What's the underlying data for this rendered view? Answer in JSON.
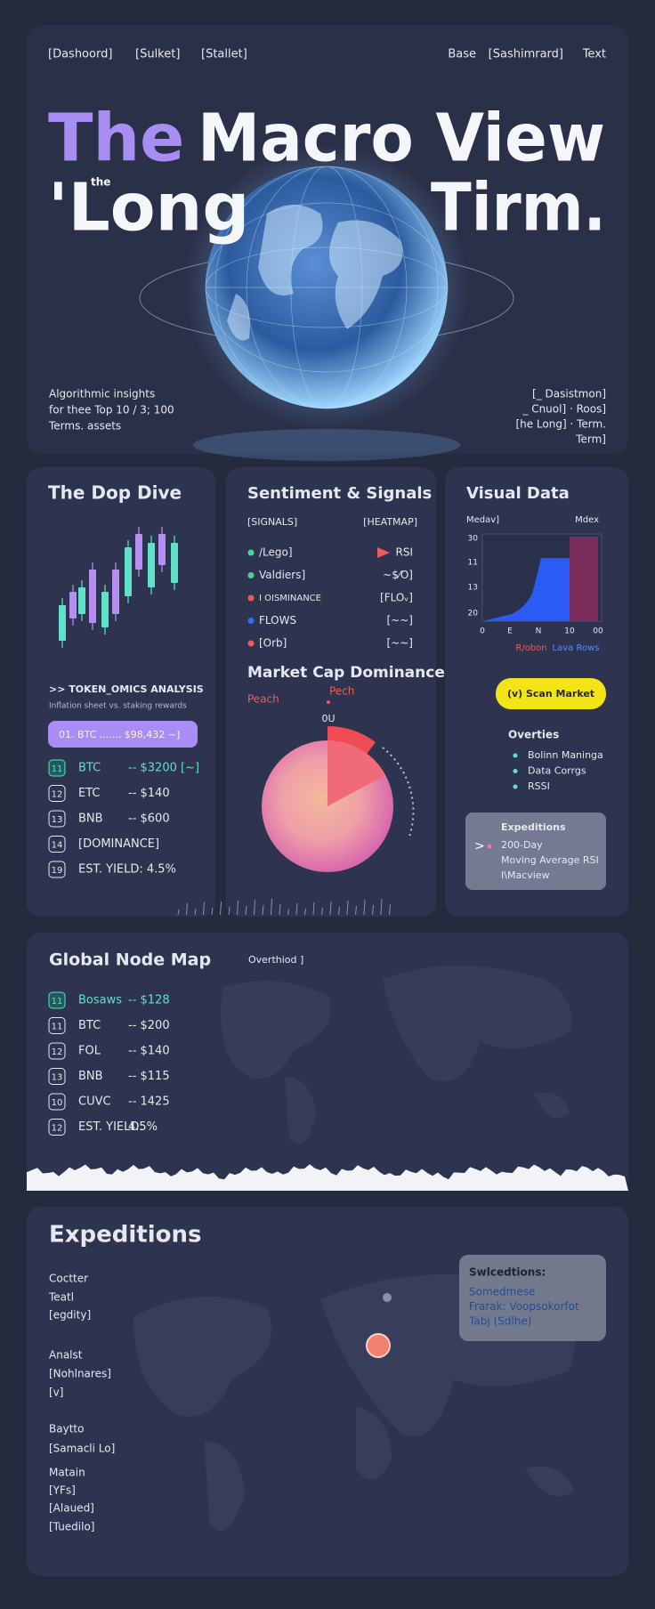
{
  "nav": {
    "left": [
      "[Dashoord]",
      "[Sulket]",
      "[Stallet]"
    ],
    "right": [
      "Base",
      "[Sashimrard]",
      "Text"
    ]
  },
  "hero": {
    "title": [
      "The",
      "Macro View"
    ],
    "line2": [
      "'Long",
      "the",
      "Tirm."
    ],
    "left_text": [
      "Algorithmic insights",
      "for thee Top 10 / 3; 100",
      "Terms. assets"
    ],
    "right_text": [
      "[_ Dasistmon]",
      "_ Cnuol]  · Roos]",
      "[he Long]  · Term.",
      "Term]"
    ]
  },
  "deep_dive": {
    "title": "The  Dop  Dive",
    "section": ">> TOKEN_OMICS ANALYSIS",
    "subtitle": "Inflation sheet vs. staking rewards",
    "highlight": "01.  BTC  ....... $98,432 ~]",
    "rows": [
      {
        "badge": "11",
        "name": "BTC",
        "value": "-- $3200 [~]"
      },
      {
        "badge": "12",
        "name": "ETC",
        "value": "-- $140"
      },
      {
        "badge": "13",
        "name": "BNB",
        "value": "-- $600"
      },
      {
        "badge": "14",
        "name": "[DOMINANCE]",
        "value": ""
      },
      {
        "badge": "19",
        "name": "EST. YIELD:  4.5%",
        "value": ""
      }
    ]
  },
  "sentiment": {
    "title": "Sentiment & Signals",
    "headers": [
      "[SIGNALS]",
      "[HEATMAP]"
    ],
    "rows": [
      {
        "left": "/Lego]",
        "right": "RSI"
      },
      {
        "left": "Valdiers]",
        "right": "~$⁄O]"
      },
      {
        "left": "I OISMINANCE",
        "right": "[FLOᵥ]"
      },
      {
        "left": "FLOWS",
        "right": "[~~]"
      },
      {
        "left": "[Orb]",
        "right": "[~~]"
      }
    ],
    "dominance_title": "Market Cap Dominance",
    "labels": [
      "Peach",
      "Pech",
      "0U"
    ]
  },
  "visual": {
    "title": "Visual Data",
    "headers": [
      "Medav]",
      "Mdex"
    ],
    "y_labels": [
      "30",
      "11",
      "13",
      "20"
    ],
    "x_labels": [
      "0",
      "E",
      "N",
      "10",
      "00"
    ],
    "legend": [
      "R/obon",
      "Lava Rows"
    ],
    "button": "(v) Scan Market",
    "overview_title": "Overties",
    "bullets": [
      "Bolinn Maninga",
      "Data Corrgs",
      "RSSI"
    ],
    "box": {
      "title": "Expeditions",
      "lines": [
        "200-Day",
        "Moving Average RSI",
        "I\\Macview"
      ]
    }
  },
  "node_map": {
    "title": "Global Node Map",
    "note": "Overthiod ]",
    "rows": [
      {
        "badge": "11",
        "name": "Bosaws",
        "value": "-- $128"
      },
      {
        "badge": "11",
        "name": "BTC",
        "value": "-- $200"
      },
      {
        "badge": "12",
        "name": "FOL",
        "value": "-- $140"
      },
      {
        "badge": "13",
        "name": "BNB",
        "value": "-- $115"
      },
      {
        "badge": "10",
        "name": "CUVC",
        "value": "-- 1425"
      },
      {
        "badge": "12",
        "name": "EST. YIELD:",
        "value": "4.5%"
      }
    ]
  },
  "expeditions": {
    "title": "Expeditions",
    "groups": [
      [
        "Coctter",
        "Teatl",
        "[egdity]"
      ],
      [
        "Analst",
        "[Nohlnares]",
        "[v]"
      ],
      [
        "Baytto",
        "[Samacli Lo]"
      ],
      [
        "Matain",
        "[YFs]",
        "[Alaued]",
        "[Tuedilo]"
      ]
    ],
    "box": {
      "title": "Swlcedtions:",
      "lines": [
        "Somedmese",
        "Frarak: Voopsokorfot",
        "Tabj (Sdlhe)"
      ]
    }
  }
}
